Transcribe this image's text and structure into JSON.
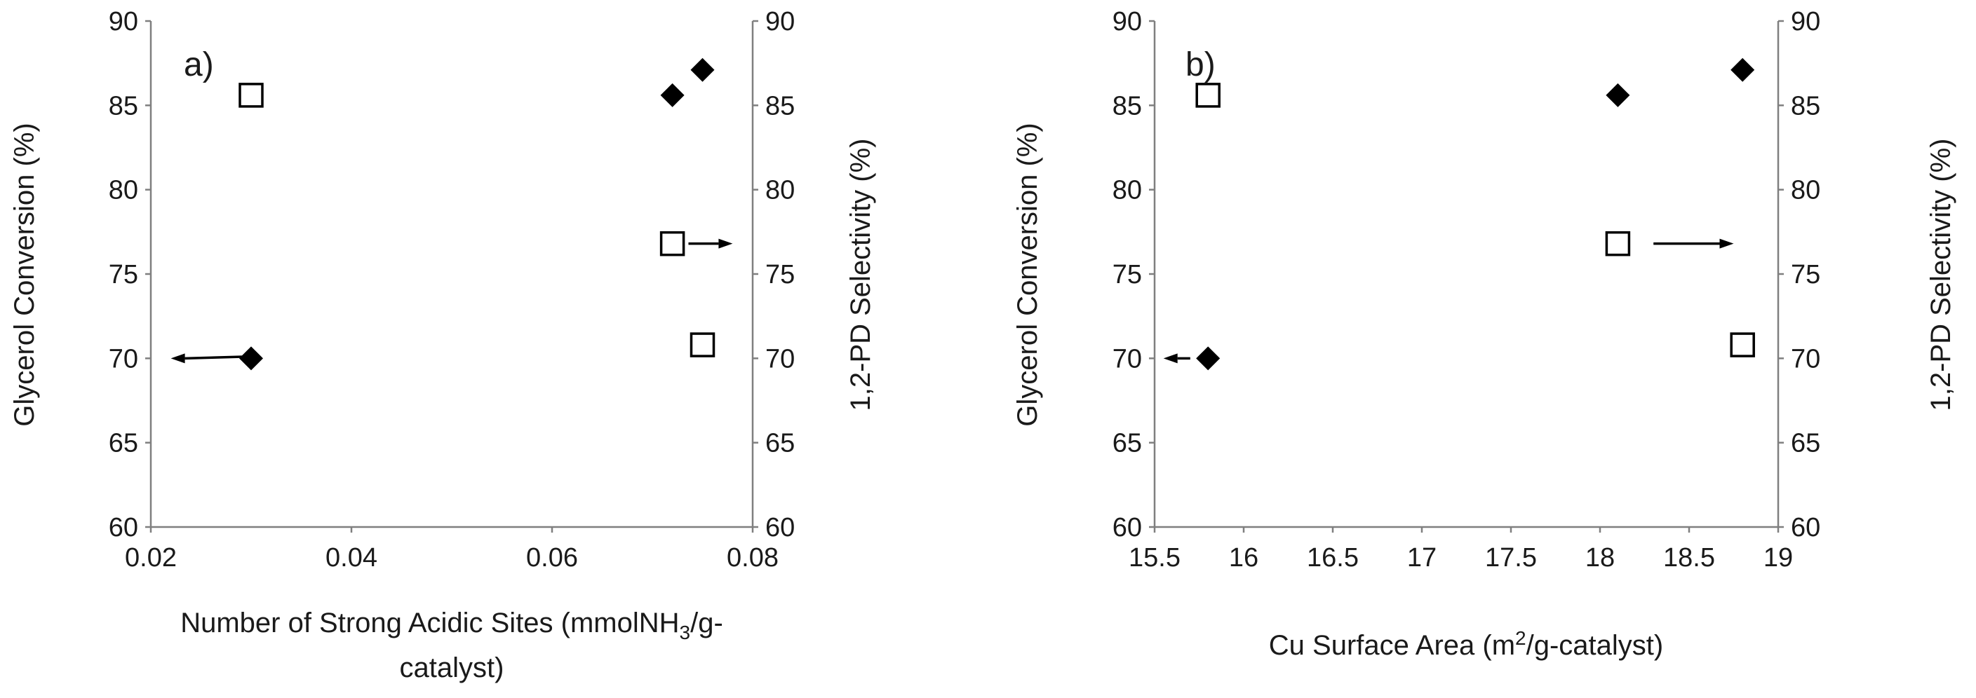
{
  "chart_data": [
    {
      "type": "scatter",
      "panel_label": "a)",
      "xlabel_lines": [
        "Number of Strong Acidic Sites (mmolNH",
        "3",
        "/g-",
        "catalyst)"
      ],
      "ylabel_left": "Glycerol Conversion (%)",
      "ylabel_right": "1,2-PD Selectivity (%)",
      "xlim": [
        0.02,
        0.08
      ],
      "xticks": [
        "0.02",
        "0.04",
        "0.06",
        "0.08"
      ],
      "xtick_values": [
        0.02,
        0.04,
        0.06,
        0.08
      ],
      "ylim": [
        60,
        90
      ],
      "yticks": [
        "60",
        "65",
        "70",
        "75",
        "80",
        "85",
        "90"
      ],
      "ytick_values": [
        60,
        65,
        70,
        75,
        80,
        85,
        90
      ],
      "series": [
        {
          "name": "Glycerol Conversion",
          "axis": "left",
          "marker": "filled-diamond",
          "x": [
            0.03,
            0.072,
            0.075
          ],
          "y": [
            70.0,
            85.6,
            87.1
          ]
        },
        {
          "name": "1,2-PD Selectivity",
          "axis": "right",
          "marker": "open-square",
          "x": [
            0.03,
            0.072,
            0.075
          ],
          "y": [
            85.6,
            76.8,
            70.8
          ]
        }
      ],
      "annotations": [
        {
          "from": [
            0.0295,
            70.1
          ],
          "to": [
            0.022,
            70.0
          ],
          "meaning": "points to left axis"
        },
        {
          "from": [
            0.0736,
            76.8
          ],
          "to": [
            0.078,
            76.8
          ],
          "meaning": "points to right axis"
        }
      ]
    },
    {
      "type": "scatter",
      "panel_label": "b)",
      "xlabel_parts": [
        "Cu Surface Area (m",
        "2",
        "/g-catalyst)"
      ],
      "ylabel_left": "Glycerol Conversion (%)",
      "ylabel_right": "1,2-PD Selectivity (%)",
      "xlim": [
        15.5,
        19
      ],
      "xticks": [
        "15.5",
        "16",
        "16.5",
        "17",
        "17.5",
        "18",
        "18.5",
        "19"
      ],
      "xtick_values": [
        15.5,
        16,
        16.5,
        17,
        17.5,
        18,
        18.5,
        19
      ],
      "ylim": [
        60,
        90
      ],
      "yticks": [
        "60",
        "65",
        "70",
        "75",
        "80",
        "85",
        "90"
      ],
      "ytick_values": [
        60,
        65,
        70,
        75,
        80,
        85,
        90
      ],
      "series": [
        {
          "name": "Glycerol Conversion",
          "axis": "left",
          "marker": "filled-diamond",
          "x": [
            15.8,
            18.1,
            18.8
          ],
          "y": [
            70.0,
            85.6,
            87.1
          ]
        },
        {
          "name": "1,2-PD Selectivity",
          "axis": "right",
          "marker": "open-square",
          "x": [
            15.8,
            18.1,
            18.8
          ],
          "y": [
            85.6,
            76.8,
            70.8
          ]
        }
      ],
      "annotations": [
        {
          "from": [
            15.7,
            70.0
          ],
          "to": [
            15.55,
            70.0
          ],
          "meaning": "points to left axis"
        },
        {
          "from": [
            18.3,
            76.8
          ],
          "to": [
            18.75,
            76.8
          ],
          "meaning": "points to right axis"
        }
      ]
    }
  ]
}
